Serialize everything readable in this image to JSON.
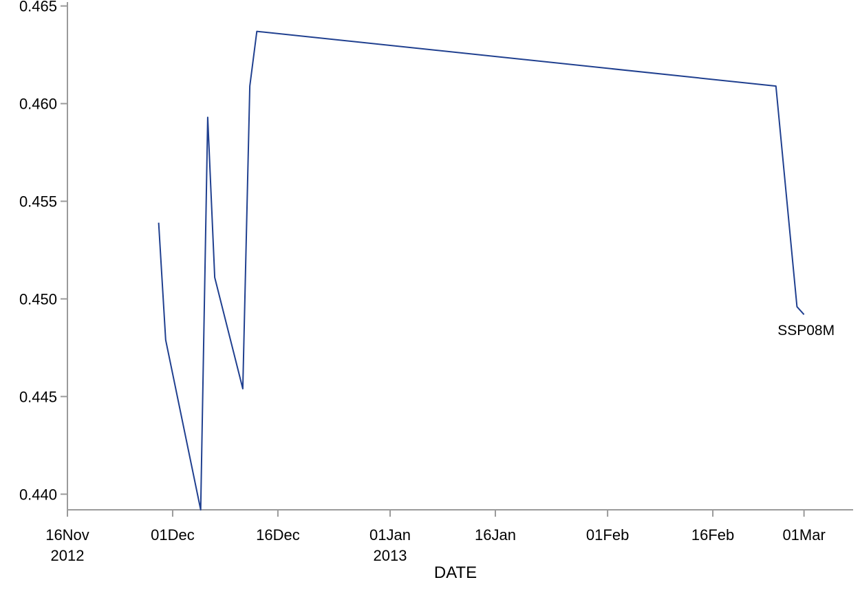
{
  "chart_data": {
    "type": "line",
    "title": "",
    "xlabel": "DATE",
    "ylabel": "",
    "grid": false,
    "legend": "none",
    "xlim": [
      "2012-11-16",
      "2013-03-08"
    ],
    "ylim": [
      0.4392,
      0.4652
    ],
    "x_ticks": [
      {
        "date": "2012-11-16",
        "label": "16Nov",
        "sublabel": "2012"
      },
      {
        "date": "2012-12-01",
        "label": "01Dec",
        "sublabel": ""
      },
      {
        "date": "2012-12-16",
        "label": "16Dec",
        "sublabel": ""
      },
      {
        "date": "2013-01-01",
        "label": "01Jan",
        "sublabel": "2013"
      },
      {
        "date": "2013-01-16",
        "label": "16Jan",
        "sublabel": ""
      },
      {
        "date": "2013-02-01",
        "label": "01Feb",
        "sublabel": ""
      },
      {
        "date": "2013-02-16",
        "label": "16Feb",
        "sublabel": ""
      },
      {
        "date": "2013-03-01",
        "label": "01Mar",
        "sublabel": ""
      }
    ],
    "y_ticks": [
      {
        "value": 0.44,
        "label": "0.440"
      },
      {
        "value": 0.445,
        "label": "0.445"
      },
      {
        "value": 0.45,
        "label": "0.450"
      },
      {
        "value": 0.455,
        "label": "0.455"
      },
      {
        "value": 0.46,
        "label": "0.460"
      },
      {
        "value": 0.465,
        "label": "0.465"
      }
    ],
    "series": [
      {
        "name": "SSP08M",
        "color": "#1f3f8f",
        "points": [
          {
            "x": "2012-11-29",
            "y": 0.4539
          },
          {
            "x": "2012-11-30",
            "y": 0.4479
          },
          {
            "x": "2012-12-05",
            "y": 0.4392
          },
          {
            "x": "2012-12-06",
            "y": 0.4593
          },
          {
            "x": "2012-12-07",
            "y": 0.4511
          },
          {
            "x": "2012-12-11",
            "y": 0.4454
          },
          {
            "x": "2012-12-12",
            "y": 0.4609
          },
          {
            "x": "2012-12-13",
            "y": 0.4637
          },
          {
            "x": "2013-02-25",
            "y": 0.4609
          },
          {
            "x": "2013-02-28",
            "y": 0.4496
          },
          {
            "x": "2013-03-01",
            "y": 0.4492
          }
        ]
      }
    ]
  }
}
